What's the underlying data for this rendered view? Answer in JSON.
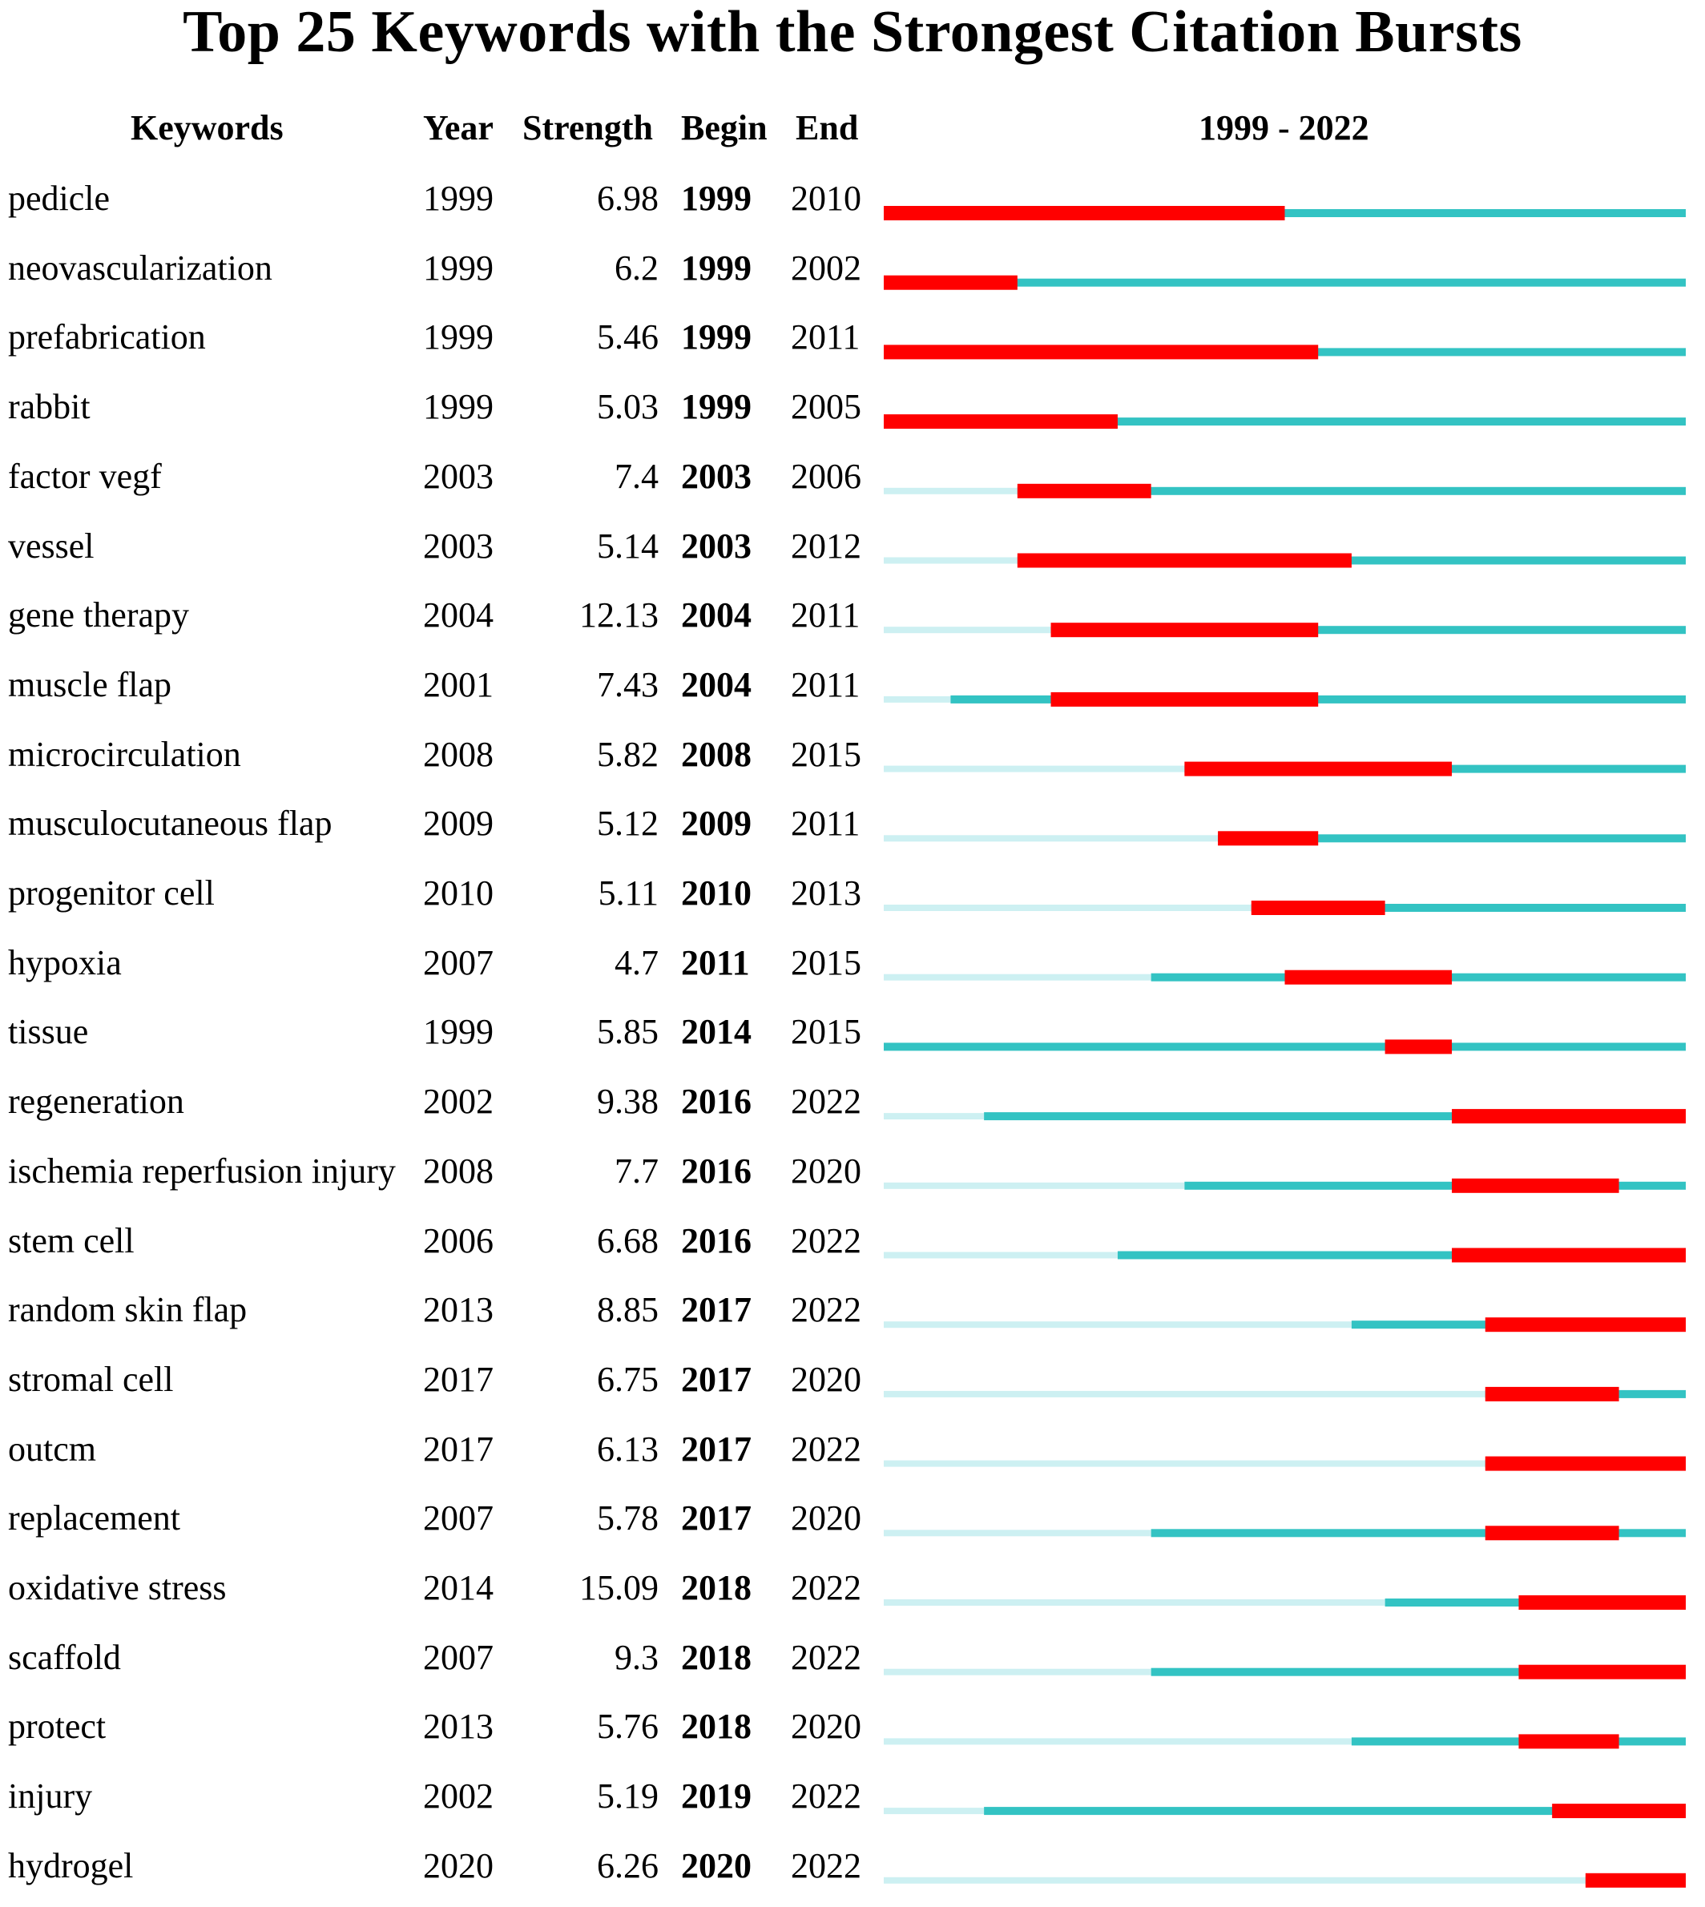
{
  "chart_data": {
    "type": "table",
    "title": "Top 25 Keywords with the Strongest Citation Bursts",
    "columns": [
      "Keywords",
      "Year",
      "Strength",
      "Begin",
      "End",
      "1999 - 2022"
    ],
    "range": [
      1999,
      2022
    ],
    "colors": {
      "burst": "#ff0000",
      "active": "#33c3c3",
      "inactive": "#cdf0f2"
    },
    "rows": [
      {
        "keyword": "pedicle",
        "year": "1999",
        "strength": "6.98",
        "begin": "1999",
        "end": "2010"
      },
      {
        "keyword": "neovascularization",
        "year": "1999",
        "strength": "6.2",
        "begin": "1999",
        "end": "2002"
      },
      {
        "keyword": "prefabrication",
        "year": "1999",
        "strength": "5.46",
        "begin": "1999",
        "end": "2011"
      },
      {
        "keyword": "rabbit",
        "year": "1999",
        "strength": "5.03",
        "begin": "1999",
        "end": "2005"
      },
      {
        "keyword": "factor vegf",
        "year": "2003",
        "strength": "7.4",
        "begin": "2003",
        "end": "2006"
      },
      {
        "keyword": "vessel",
        "year": "2003",
        "strength": "5.14",
        "begin": "2003",
        "end": "2012"
      },
      {
        "keyword": "gene therapy",
        "year": "2004",
        "strength": "12.13",
        "begin": "2004",
        "end": "2011"
      },
      {
        "keyword": "muscle flap",
        "year": "2001",
        "strength": "7.43",
        "begin": "2004",
        "end": "2011"
      },
      {
        "keyword": "microcirculation",
        "year": "2008",
        "strength": "5.82",
        "begin": "2008",
        "end": "2015"
      },
      {
        "keyword": "musculocutaneous flap",
        "year": "2009",
        "strength": "5.12",
        "begin": "2009",
        "end": "2011"
      },
      {
        "keyword": "progenitor cell",
        "year": "2010",
        "strength": "5.11",
        "begin": "2010",
        "end": "2013"
      },
      {
        "keyword": "hypoxia",
        "year": "2007",
        "strength": "4.7",
        "begin": "2011",
        "end": "2015"
      },
      {
        "keyword": "tissue",
        "year": "1999",
        "strength": "5.85",
        "begin": "2014",
        "end": "2015"
      },
      {
        "keyword": "regeneration",
        "year": "2002",
        "strength": "9.38",
        "begin": "2016",
        "end": "2022"
      },
      {
        "keyword": "ischemia reperfusion injury",
        "year": "2008",
        "strength": "7.7",
        "begin": "2016",
        "end": "2020"
      },
      {
        "keyword": "stem cell",
        "year": "2006",
        "strength": "6.68",
        "begin": "2016",
        "end": "2022"
      },
      {
        "keyword": "random skin flap",
        "year": "2013",
        "strength": "8.85",
        "begin": "2017",
        "end": "2022"
      },
      {
        "keyword": "stromal cell",
        "year": "2017",
        "strength": "6.75",
        "begin": "2017",
        "end": "2020"
      },
      {
        "keyword": "outcm",
        "year": "2017",
        "strength": "6.13",
        "begin": "2017",
        "end": "2022"
      },
      {
        "keyword": "replacement",
        "year": "2007",
        "strength": "5.78",
        "begin": "2017",
        "end": "2020"
      },
      {
        "keyword": "oxidative stress",
        "year": "2014",
        "strength": "15.09",
        "begin": "2018",
        "end": "2022"
      },
      {
        "keyword": "scaffold",
        "year": "2007",
        "strength": "9.3",
        "begin": "2018",
        "end": "2022"
      },
      {
        "keyword": "protect",
        "year": "2013",
        "strength": "5.76",
        "begin": "2018",
        "end": "2020"
      },
      {
        "keyword": "injury",
        "year": "2002",
        "strength": "5.19",
        "begin": "2019",
        "end": "2022"
      },
      {
        "keyword": "hydrogel",
        "year": "2020",
        "strength": "6.26",
        "begin": "2020",
        "end": "2022"
      }
    ]
  }
}
